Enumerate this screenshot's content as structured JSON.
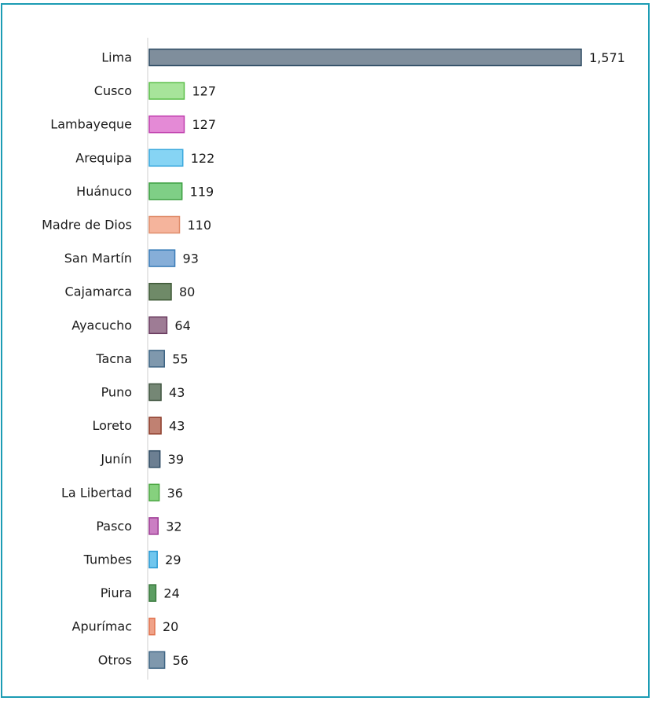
{
  "chart_data": {
    "type": "bar",
    "orientation": "horizontal",
    "title": "",
    "xlabel": "",
    "ylabel": "",
    "xlim": [
      0,
      1571
    ],
    "grid": false,
    "legend": "none",
    "categories": [
      "Lima",
      "Cusco",
      "Lambayeque",
      "Arequipa",
      "Huánuco",
      "Madre de Dios",
      "San Martín",
      "Cajamarca",
      "Ayacucho",
      "Tacna",
      "Puno",
      "Loreto",
      "Junín",
      "La Libertad",
      "Pasco",
      "Tumbes",
      "Piura",
      "Apurímac",
      "Otros"
    ],
    "values": [
      1571,
      127,
      127,
      122,
      119,
      110,
      93,
      80,
      64,
      55,
      43,
      43,
      39,
      36,
      32,
      29,
      24,
      20,
      56
    ],
    "value_labels": [
      "1,571",
      "127",
      "127",
      "122",
      "119",
      "110",
      "93",
      "80",
      "64",
      "55",
      "43",
      "43",
      "39",
      "36",
      "32",
      "29",
      "24",
      "20",
      "56"
    ],
    "bar_colors": [
      "#7f8e9c",
      "#a7e49a",
      "#e48ad6",
      "#86d4f4",
      "#7fcf86",
      "#f5b49c",
      "#86aed8",
      "#6f8a68",
      "#9e7c95",
      "#7f98ad",
      "#758775",
      "#c08172",
      "#6c7f92",
      "#86d17e",
      "#cb7ec3",
      "#70c6ee",
      "#5d9e63",
      "#f0a288",
      "#7f98ad"
    ],
    "bar_borders": [
      "#2e4b63",
      "#5cbf4a",
      "#c03fae",
      "#39a8dd",
      "#3a9e3f",
      "#e08d6c",
      "#3a7cb8",
      "#3f5a37",
      "#6a3c60",
      "#3e6584",
      "#3f543f",
      "#8c3b28",
      "#2e4b63",
      "#4ea845",
      "#9e3c94",
      "#2b9ad3",
      "#3a7a3d",
      "#e0734f",
      "#3e6584"
    ]
  }
}
